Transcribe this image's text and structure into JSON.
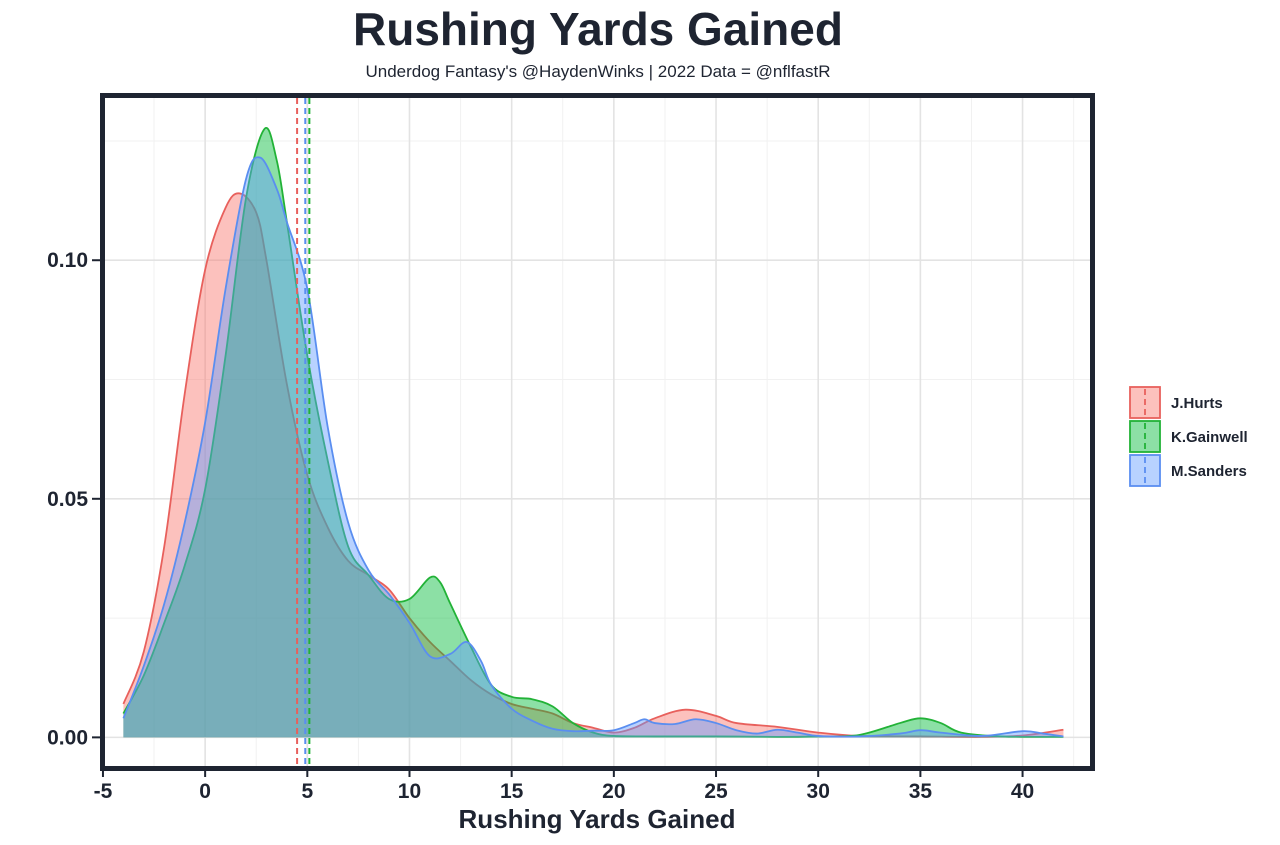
{
  "chart_data": {
    "type": "area",
    "title": "Rushing Yards Gained",
    "subtitle": "Underdog Fantasy's @HaydenWinks | 2022 Data = @nflfastR",
    "xlabel": "Rushing Yards Gained",
    "ylabel": "",
    "xlim": [
      -4.9,
      43.3
    ],
    "ylim": [
      -0.006,
      0.134
    ],
    "x_ticks": [
      -5,
      0,
      5,
      10,
      15,
      20,
      25,
      30,
      35,
      40
    ],
    "y_ticks": [
      0.0,
      0.05,
      0.1
    ],
    "y_tick_labels": [
      "0.00",
      "0.05",
      "0.10"
    ],
    "legend_position": "right",
    "grid": true,
    "series": [
      {
        "name": "J.Hurts",
        "color": "#e8605c",
        "fill": "#f8766d",
        "mean": 4.5,
        "points": [
          [
            -4,
            0.007
          ],
          [
            -3,
            0.018
          ],
          [
            -2,
            0.04
          ],
          [
            -1,
            0.072
          ],
          [
            0,
            0.098
          ],
          [
            1,
            0.111
          ],
          [
            1.7,
            0.114
          ],
          [
            2.5,
            0.11
          ],
          [
            3,
            0.1
          ],
          [
            4,
            0.074
          ],
          [
            5,
            0.055
          ],
          [
            6,
            0.044
          ],
          [
            7,
            0.037
          ],
          [
            8,
            0.034
          ],
          [
            9,
            0.031
          ],
          [
            10,
            0.025
          ],
          [
            11,
            0.02
          ],
          [
            12,
            0.016
          ],
          [
            13,
            0.012
          ],
          [
            14,
            0.009
          ],
          [
            15,
            0.007
          ],
          [
            16,
            0.006
          ],
          [
            17,
            0.005
          ],
          [
            18,
            0.003
          ],
          [
            19,
            0.002
          ],
          [
            20,
            0.001
          ],
          [
            21,
            0.002
          ],
          [
            22,
            0.004
          ],
          [
            23.5,
            0.0058
          ],
          [
            25,
            0.0045
          ],
          [
            26,
            0.003
          ],
          [
            28,
            0.0022
          ],
          [
            30,
            0.001
          ],
          [
            32,
            0.0003
          ],
          [
            35,
            0.0002
          ],
          [
            38,
            0.0001
          ],
          [
            40,
            0.0004
          ],
          [
            42,
            0.0016
          ]
        ]
      },
      {
        "name": "K.Gainwell",
        "color": "#22b237",
        "fill": "#00ba38",
        "mean": 5.1,
        "points": [
          [
            -4,
            0.005
          ],
          [
            -3,
            0.013
          ],
          [
            -2,
            0.024
          ],
          [
            -1,
            0.036
          ],
          [
            0,
            0.052
          ],
          [
            1,
            0.08
          ],
          [
            2,
            0.113
          ],
          [
            2.9,
            0.1275
          ],
          [
            3.5,
            0.121
          ],
          [
            4,
            0.108
          ],
          [
            5,
            0.08
          ],
          [
            6,
            0.058
          ],
          [
            7,
            0.04
          ],
          [
            8,
            0.034
          ],
          [
            9,
            0.029
          ],
          [
            10,
            0.029
          ],
          [
            11,
            0.0335
          ],
          [
            11.5,
            0.0325
          ],
          [
            12,
            0.028
          ],
          [
            13,
            0.019
          ],
          [
            14,
            0.011
          ],
          [
            15,
            0.0085
          ],
          [
            16,
            0.008
          ],
          [
            17,
            0.0065
          ],
          [
            18,
            0.003
          ],
          [
            19,
            0.001
          ],
          [
            20,
            0.0003
          ],
          [
            22,
            0.0002
          ],
          [
            25,
            0.0002
          ],
          [
            28,
            0.0001
          ],
          [
            30,
            0.0002
          ],
          [
            32,
            0.0005
          ],
          [
            34,
            0.003
          ],
          [
            35,
            0.004
          ],
          [
            36,
            0.003
          ],
          [
            37,
            0.001
          ],
          [
            39,
            0.0002
          ],
          [
            42,
            0.0001
          ]
        ]
      },
      {
        "name": "M.Sanders",
        "color": "#5a8ef0",
        "fill": "#619cff",
        "mean": 4.9,
        "points": [
          [
            -4,
            0.004
          ],
          [
            -3,
            0.015
          ],
          [
            -2,
            0.028
          ],
          [
            -1,
            0.045
          ],
          [
            0,
            0.066
          ],
          [
            1,
            0.094
          ],
          [
            2,
            0.117
          ],
          [
            2.7,
            0.1215
          ],
          [
            3.5,
            0.115
          ],
          [
            4,
            0.108
          ],
          [
            5,
            0.094
          ],
          [
            6,
            0.065
          ],
          [
            7,
            0.045
          ],
          [
            8,
            0.035
          ],
          [
            9,
            0.03
          ],
          [
            10,
            0.024
          ],
          [
            11,
            0.017
          ],
          [
            12,
            0.0175
          ],
          [
            12.8,
            0.02
          ],
          [
            13.5,
            0.016
          ],
          [
            14,
            0.011
          ],
          [
            15,
            0.006
          ],
          [
            16,
            0.0035
          ],
          [
            17,
            0.0018
          ],
          [
            18,
            0.0013
          ],
          [
            19,
            0.0014
          ],
          [
            20,
            0.0015
          ],
          [
            21,
            0.003
          ],
          [
            21.5,
            0.0038
          ],
          [
            22,
            0.003
          ],
          [
            23,
            0.0028
          ],
          [
            24,
            0.0038
          ],
          [
            25,
            0.003
          ],
          [
            26,
            0.0015
          ],
          [
            27,
            0.0008
          ],
          [
            28,
            0.0016
          ],
          [
            29,
            0.001
          ],
          [
            30,
            0.0003
          ],
          [
            32,
            0.0002
          ],
          [
            34,
            0.0008
          ],
          [
            35,
            0.0015
          ],
          [
            36,
            0.001
          ],
          [
            38,
            0.0003
          ],
          [
            40,
            0.0013
          ],
          [
            41,
            0.0008
          ],
          [
            42,
            0.0002
          ]
        ]
      }
    ]
  }
}
